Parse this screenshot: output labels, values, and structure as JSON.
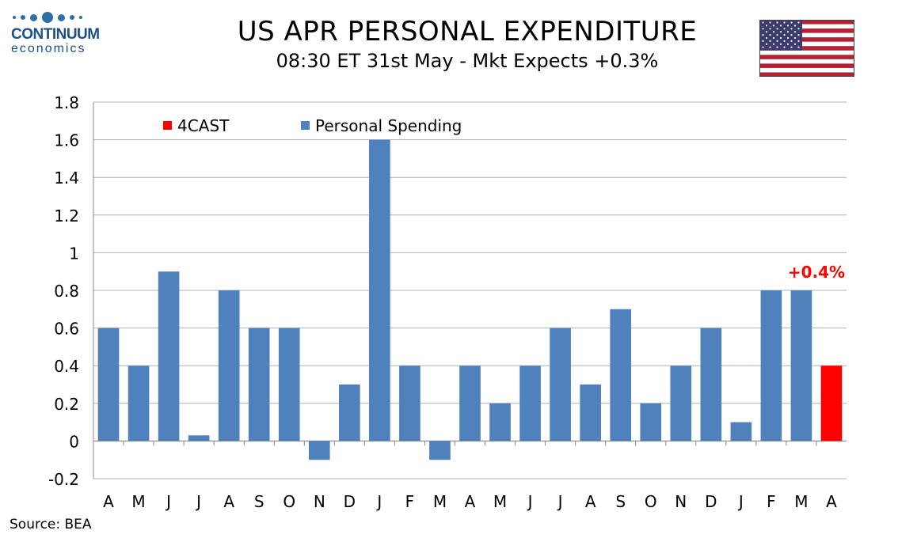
{
  "logo": {
    "name": "CONTINUUM",
    "sub": "economics"
  },
  "header": {
    "title": "US APR PERSONAL EXPENDITURE",
    "subtitle": "08:30 ET 31st May - Mkt Expects +0.3%"
  },
  "flag_icon": "us-flag-icon",
  "source": "Source: BEA",
  "colors": {
    "spending": "#4f81bd",
    "forecast": "#ff0000",
    "grid": "#b0b0b0"
  },
  "chart_data": {
    "type": "bar",
    "categories": [
      "A",
      "M",
      "J",
      "J",
      "A",
      "S",
      "O",
      "N",
      "D",
      "J",
      "F",
      "M",
      "A",
      "M",
      "J",
      "J",
      "A",
      "S",
      "O",
      "N",
      "D",
      "J",
      "F",
      "M",
      "A"
    ],
    "series": [
      {
        "name": "Personal Spending",
        "values": [
          0.6,
          0.4,
          0.9,
          0.03,
          0.8,
          0.6,
          0.6,
          -0.1,
          0.3,
          1.6,
          0.4,
          -0.1,
          0.4,
          0.2,
          0.4,
          0.6,
          0.3,
          0.7,
          0.2,
          0.4,
          0.6,
          0.1,
          0.8,
          0.8,
          null
        ]
      },
      {
        "name": "4CAST",
        "values": [
          null,
          null,
          null,
          null,
          null,
          null,
          null,
          null,
          null,
          null,
          null,
          null,
          null,
          null,
          null,
          null,
          null,
          null,
          null,
          null,
          null,
          null,
          null,
          null,
          0.4
        ]
      }
    ],
    "annotation": "+0.4%",
    "ylim": [
      -0.2,
      1.8
    ],
    "yticks": [
      "-0.2",
      "0",
      "0.2",
      "0.4",
      "0.6",
      "0.8",
      "1",
      "1.2",
      "1.4",
      "1.6",
      "1.8"
    ],
    "grid": true,
    "legend_position": "top-left"
  }
}
